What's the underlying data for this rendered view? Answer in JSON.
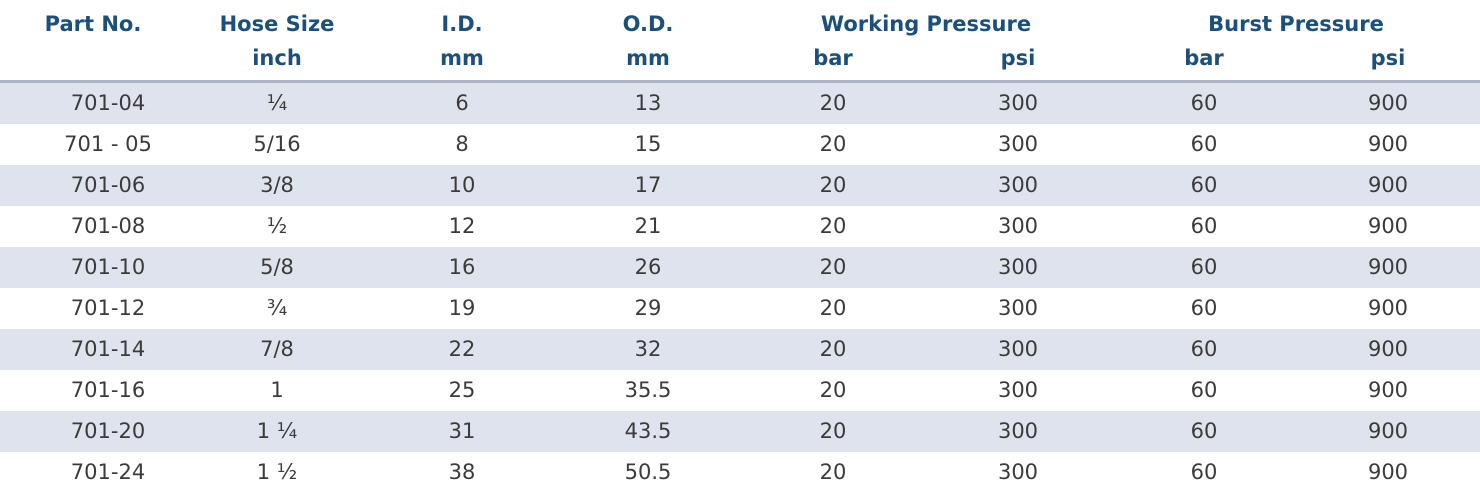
{
  "header": {
    "part_no": "Part No.",
    "hose_size": "Hose Size",
    "hose_size_unit": "inch",
    "id": "I.D.",
    "id_unit": "mm",
    "od": "O.D.",
    "od_unit": "mm",
    "working_pressure": "Working Pressure",
    "working_bar": "bar",
    "working_psi": "psi",
    "burst_pressure": "Burst Pressure",
    "burst_bar": "bar",
    "burst_psi": "psi"
  },
  "rows": [
    {
      "part": "701-04",
      "size": "¼",
      "id": "6",
      "od": "13",
      "wp_bar": "20",
      "wp_psi": "300",
      "bp_bar": "60",
      "bp_psi": "900"
    },
    {
      "part": "701 - 05",
      "size": "5/16",
      "id": "8",
      "od": "15",
      "wp_bar": "20",
      "wp_psi": "300",
      "bp_bar": "60",
      "bp_psi": "900"
    },
    {
      "part": "701-06",
      "size": "3/8",
      "id": "10",
      "od": "17",
      "wp_bar": "20",
      "wp_psi": "300",
      "bp_bar": "60",
      "bp_psi": "900"
    },
    {
      "part": "701-08",
      "size": "½",
      "id": "12",
      "od": "21",
      "wp_bar": "20",
      "wp_psi": "300",
      "bp_bar": "60",
      "bp_psi": "900"
    },
    {
      "part": "701-10",
      "size": "5/8",
      "id": "16",
      "od": "26",
      "wp_bar": "20",
      "wp_psi": "300",
      "bp_bar": "60",
      "bp_psi": "900"
    },
    {
      "part": "701-12",
      "size": "¾",
      "id": "19",
      "od": "29",
      "wp_bar": "20",
      "wp_psi": "300",
      "bp_bar": "60",
      "bp_psi": "900"
    },
    {
      "part": "701-14",
      "size": "7/8",
      "id": "22",
      "od": "32",
      "wp_bar": "20",
      "wp_psi": "300",
      "bp_bar": "60",
      "bp_psi": "900"
    },
    {
      "part": "701-16",
      "size": "1",
      "id": "25",
      "od": "35.5",
      "wp_bar": "20",
      "wp_psi": "300",
      "bp_bar": "60",
      "bp_psi": "900"
    },
    {
      "part": "701-20",
      "size": "1 ¼",
      "id": "31",
      "od": "43.5",
      "wp_bar": "20",
      "wp_psi": "300",
      "bp_bar": "60",
      "bp_psi": "900"
    },
    {
      "part": "701-24",
      "size": "1 ½",
      "id": "38",
      "od": "50.5",
      "wp_bar": "20",
      "wp_psi": "300",
      "bp_bar": "60",
      "bp_psi": "900"
    }
  ],
  "colors": {
    "header_text": "#1b4f7c",
    "body_text": "#3b3b3b",
    "row_shade": "#dfe3ee",
    "header_rule": "#a9b2c6"
  }
}
